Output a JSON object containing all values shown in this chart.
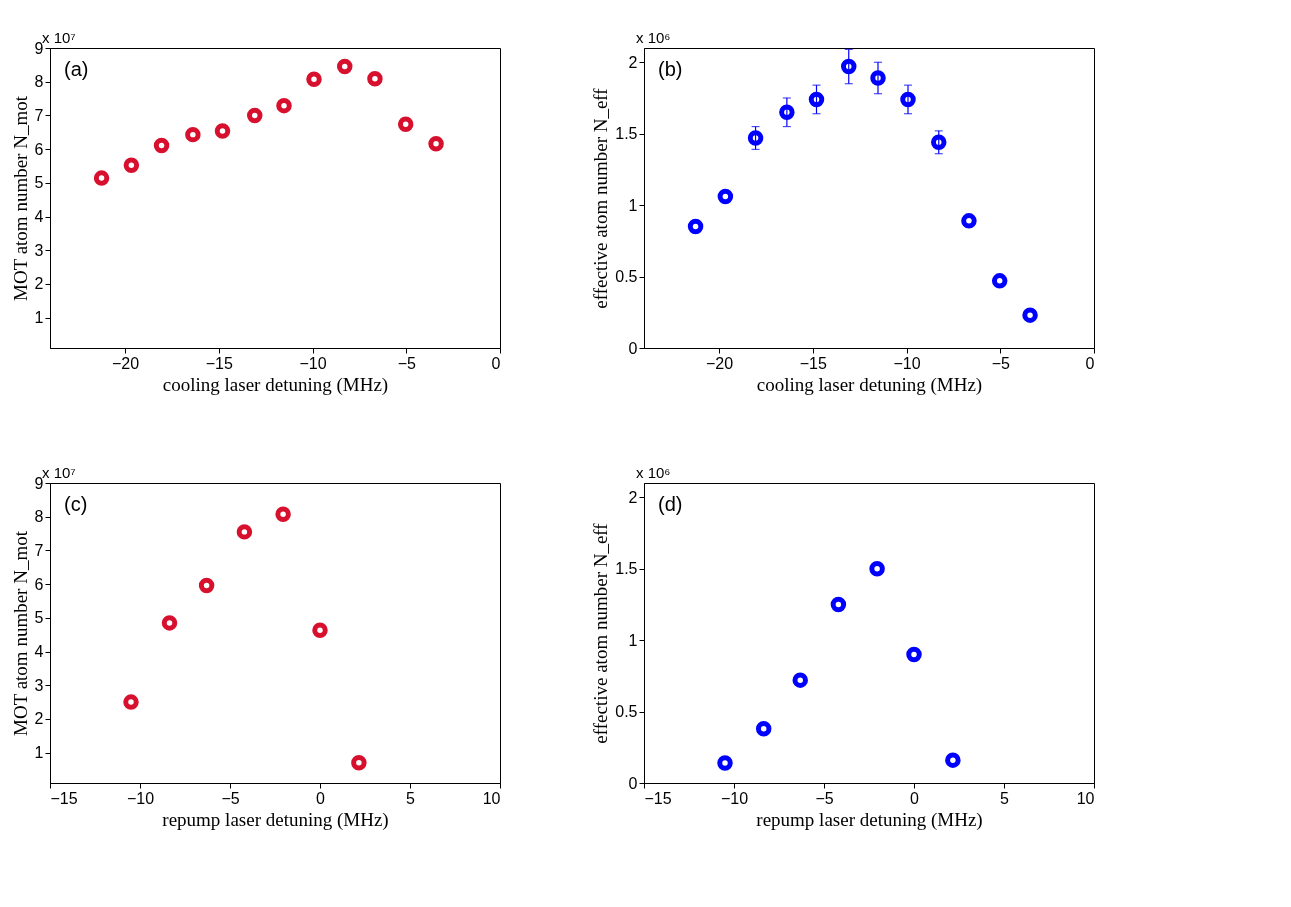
{
  "chart_data": [
    {
      "type": "scatter",
      "xlabel": "cooling laser detuning (MHz)",
      "ylabel": "MOT atom number N_mot",
      "annotations": [
        "(a)",
        "x 10⁷"
      ],
      "xlim": [
        -24,
        0
      ],
      "ylim": [
        0.1,
        9
      ],
      "xticks": [
        -20,
        -15,
        -10,
        -5,
        0
      ],
      "yticks": [
        1,
        2,
        3,
        4,
        5,
        6,
        7,
        8,
        9
      ],
      "marker": "circle",
      "series": [
        {
          "color": "#d7102e",
          "x": [
            -21.25,
            -19.66,
            -18.05,
            -16.38,
            -14.8,
            -13.08,
            -11.52,
            -9.92,
            -8.28,
            -6.67,
            -5.03,
            -3.41
          ],
          "values": [
            5.14,
            5.52,
            6.11,
            6.43,
            6.54,
            7.0,
            7.29,
            8.07,
            8.45,
            8.09,
            6.74,
            6.16
          ]
        }
      ]
    },
    {
      "type": "scatter",
      "xlabel": "cooling laser detuning (MHz)",
      "ylabel": "effective atom number N_eff",
      "annotations": [
        "(b)",
        "x 10⁶"
      ],
      "xlim": [
        -24,
        0
      ],
      "ylim": [
        0,
        2.1
      ],
      "xticks": [
        -20,
        -15,
        -10,
        -5,
        0
      ],
      "yticks": [
        0,
        0.5,
        1,
        1.5,
        2
      ],
      "marker": "circle",
      "series": [
        {
          "color": "#0000ff",
          "x": [
            -21.25,
            -19.66,
            -18.05,
            -16.38,
            -14.8,
            -13.08,
            -11.52,
            -9.92,
            -8.28,
            -6.67,
            -5.03,
            -3.41
          ],
          "values": [
            0.85,
            1.06,
            1.47,
            1.65,
            1.74,
            1.97,
            1.89,
            1.74,
            1.44,
            0.89,
            0.47,
            0.23
          ],
          "errors": [
            null,
            null,
            0.08,
            0.1,
            0.1,
            0.12,
            0.11,
            0.1,
            0.08,
            null,
            null,
            null
          ]
        }
      ]
    },
    {
      "type": "scatter",
      "xlabel": "repump laser detuning (MHz)",
      "ylabel": "MOT atom number N_mot",
      "annotations": [
        "(c)",
        "x 10⁷"
      ],
      "xlim": [
        -15,
        10
      ],
      "ylim": [
        0.1,
        9
      ],
      "xticks": [
        -15,
        -10,
        -5,
        0,
        5,
        10
      ],
      "yticks": [
        1,
        2,
        3,
        4,
        5,
        6,
        7,
        8,
        9
      ],
      "marker": "circle",
      "series": [
        {
          "color": "#d7102e",
          "x": [
            -10.5,
            -8.36,
            -6.3,
            -4.2,
            -2.05,
            0,
            2.16
          ],
          "values": [
            2.5,
            4.85,
            5.96,
            7.55,
            8.07,
            4.63,
            0.7
          ]
        }
      ]
    },
    {
      "type": "scatter",
      "xlabel": "repump laser detuning (MHz)",
      "ylabel": "effective atom number N_eff",
      "annotations": [
        "(d)",
        "x 10⁶"
      ],
      "xlim": [
        -15,
        10
      ],
      "ylim": [
        0,
        2.1
      ],
      "xticks": [
        -15,
        -10,
        -5,
        0,
        5,
        10
      ],
      "yticks": [
        0,
        0.5,
        1,
        1.5,
        2
      ],
      "marker": "circle",
      "series": [
        {
          "color": "#0000ff",
          "x": [
            -10.5,
            -8.35,
            -6.32,
            -4.2,
            -2.05,
            0,
            2.16
          ],
          "values": [
            0.14,
            0.38,
            0.72,
            1.25,
            1.5,
            0.9,
            0.16
          ]
        }
      ]
    }
  ]
}
